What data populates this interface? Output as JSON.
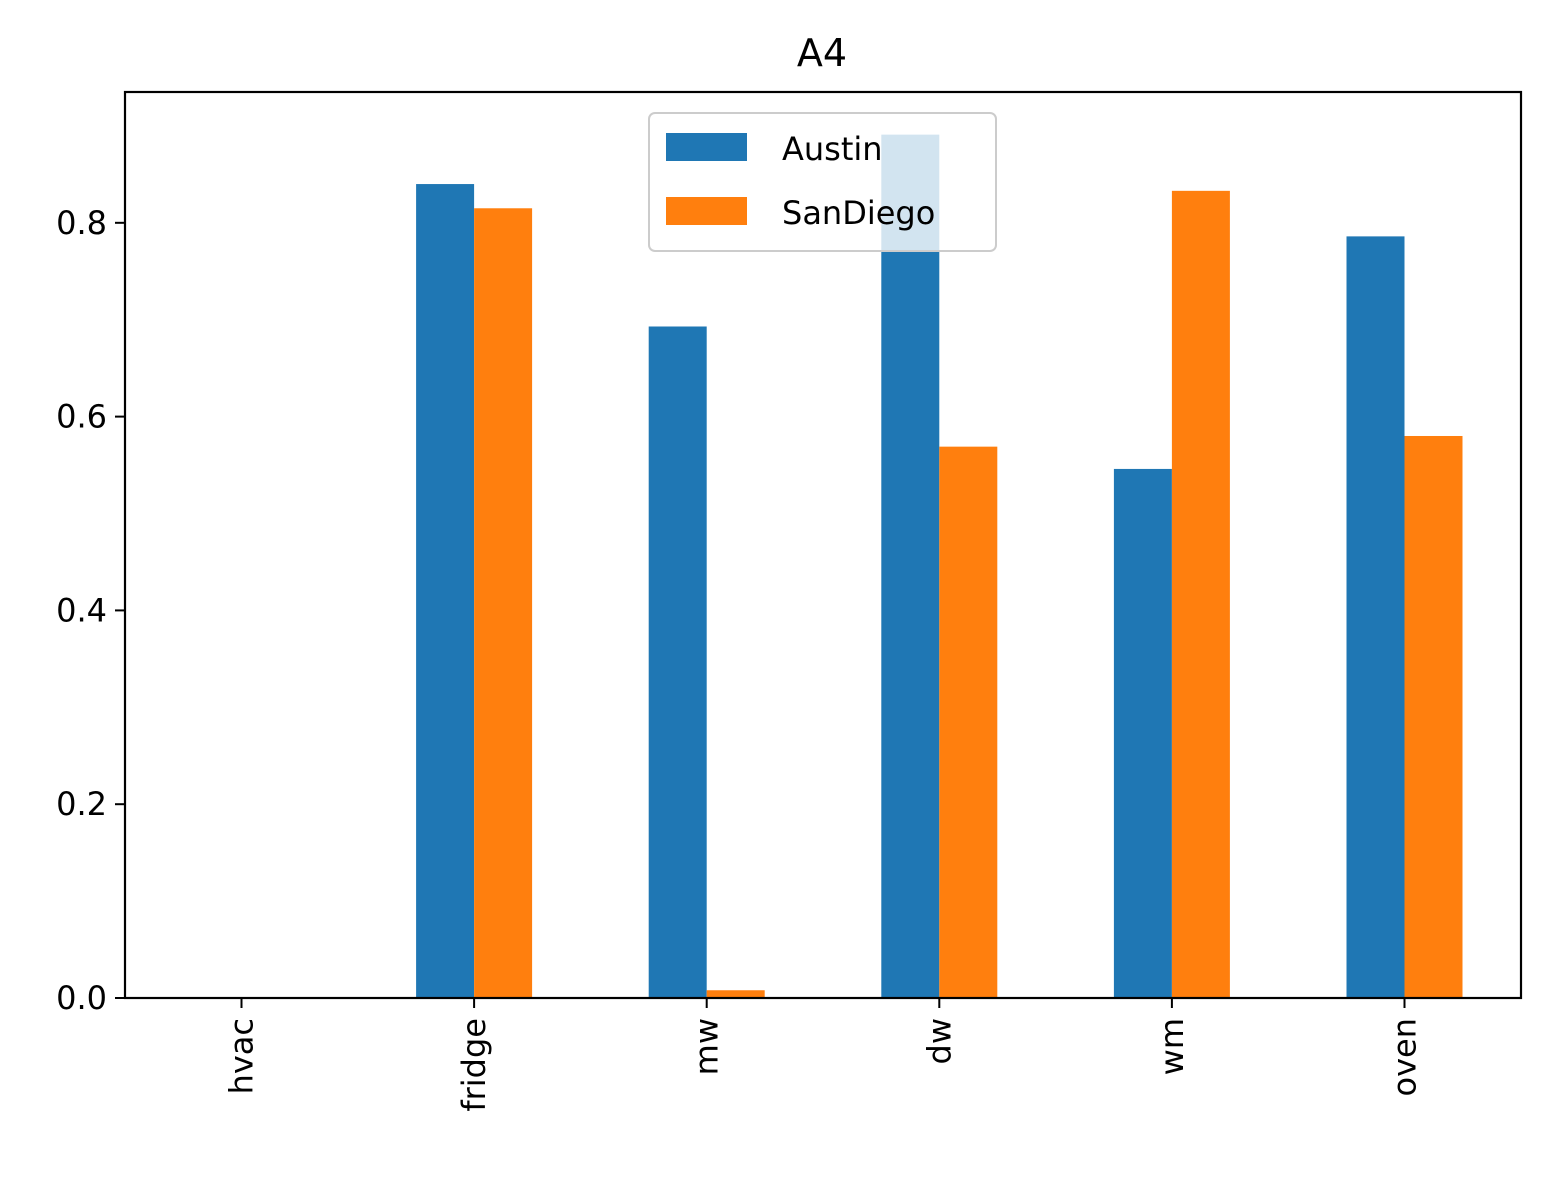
{
  "chart_data": {
    "type": "bar",
    "title": "A4",
    "xlabel": "",
    "ylabel": "",
    "categories": [
      "hvac",
      "fridge",
      "mw",
      "dw",
      "wm",
      "oven"
    ],
    "series": [
      {
        "name": "Austin",
        "color": "#1f77b4",
        "values": [
          0.0,
          0.84,
          0.693,
          0.891,
          0.546,
          0.786
        ]
      },
      {
        "name": "SanDiego",
        "color": "#ff7f0e",
        "values": [
          0.0,
          0.815,
          0.008,
          0.569,
          0.833,
          0.58
        ]
      }
    ],
    "ylim": [
      0,
      0.935
    ],
    "yticks": [
      "0.0",
      "0.2",
      "0.4",
      "0.6",
      "0.8"
    ],
    "grid": false,
    "legend": {
      "placement": "upper-center"
    },
    "xtick_rotation": "vertical"
  }
}
